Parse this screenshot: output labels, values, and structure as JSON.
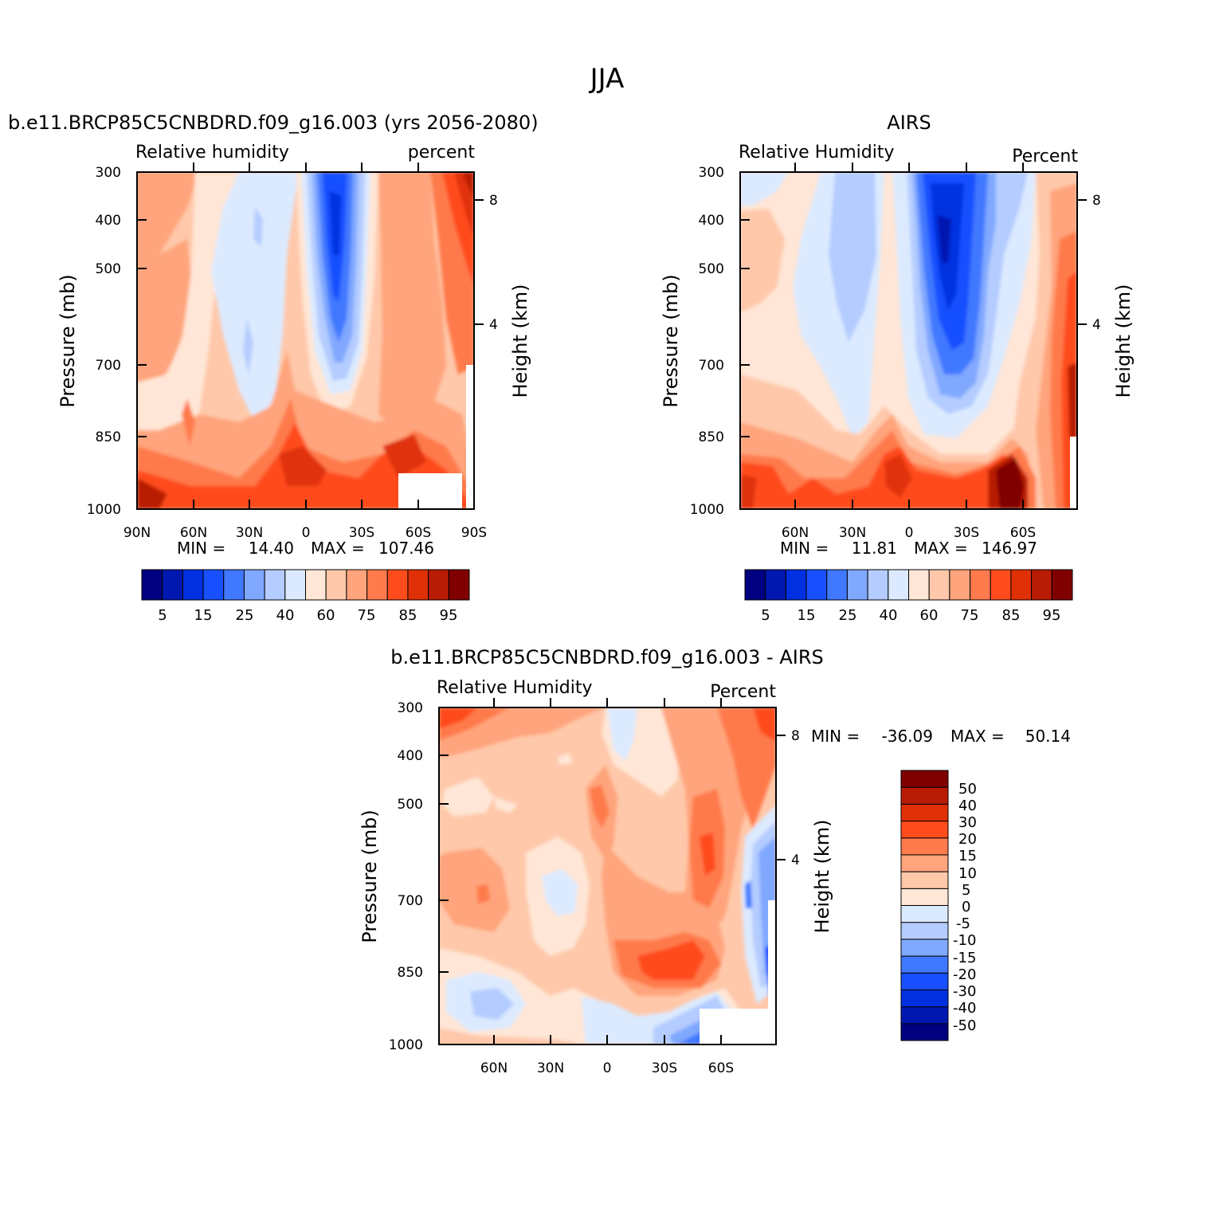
{
  "figure": {
    "title": "JJA"
  },
  "colors": {
    "rh_levels": [
      "#000080",
      "#0018b0",
      "#0030e0",
      "#1850ff",
      "#4078ff",
      "#80a8ff",
      "#b4ccff",
      "#dceaff",
      "#ffe6d6",
      "#ffc8aa",
      "#ffa47c",
      "#ff7a4c",
      "#ff4c1c",
      "#e03008",
      "#b81c04",
      "#800000"
    ],
    "diff_levels": [
      "#000080",
      "#0018b0",
      "#0030e0",
      "#1850ff",
      "#4078ff",
      "#80a8ff",
      "#b4ccff",
      "#dceaff",
      "#ffe6d6",
      "#ffc8aa",
      "#ffa47c",
      "#ff7a4c",
      "#ff4c1c",
      "#e03008",
      "#b81c04",
      "#800000"
    ]
  },
  "chart_data": [
    {
      "type": "heatmap",
      "title": "b.e11.BRCP85C5CNBDRD.f09_g16.003 (yrs 2056-2080)",
      "subtitle_left": "Relative humidity",
      "subtitle_right": "percent",
      "ylabel": "Pressure (mb)",
      "ylabel_right": "Height (km)",
      "y_ticks": [
        "300",
        "400",
        "500",
        "700",
        "850",
        "1000"
      ],
      "y_right_ticks": [
        "8",
        "4"
      ],
      "x_ticks": [
        "90N",
        "60N",
        "30N",
        "0",
        "30S",
        "60S",
        "90S"
      ],
      "ylim": [
        1000,
        300
      ],
      "stats": {
        "min_label": "MIN =",
        "min": "14.40",
        "max_label": "MAX =",
        "max": "107.46"
      },
      "colorbar_labels": [
        "5",
        "15",
        "25",
        "40",
        "60",
        "75",
        "85",
        "95"
      ]
    },
    {
      "type": "heatmap",
      "title": "AIRS",
      "subtitle_left": "Relative Humidity",
      "subtitle_right": "Percent",
      "ylabel": "Pressure (mb)",
      "ylabel_right": "Height (km)",
      "y_ticks": [
        "300",
        "400",
        "500",
        "700",
        "850",
        "1000"
      ],
      "y_right_ticks": [
        "8",
        "4"
      ],
      "x_ticks": [
        "60N",
        "30N",
        "0",
        "30S",
        "60S"
      ],
      "ylim": [
        1000,
        300
      ],
      "stats": {
        "min_label": "MIN =",
        "min": "11.81",
        "max_label": "MAX =",
        "max": "146.97"
      },
      "colorbar_labels": [
        "5",
        "15",
        "25",
        "40",
        "60",
        "75",
        "85",
        "95"
      ]
    },
    {
      "type": "heatmap",
      "title": "b.e11.BRCP85C5CNBDRD.f09_g16.003 - AIRS",
      "subtitle_left": "Relative Humidity",
      "subtitle_right": "Percent",
      "ylabel": "Pressure (mb)",
      "ylabel_right": "Height (km)",
      "y_ticks": [
        "300",
        "400",
        "500",
        "700",
        "850",
        "1000"
      ],
      "y_right_ticks": [
        "8",
        "4"
      ],
      "x_ticks": [
        "60N",
        "30N",
        "0",
        "30S",
        "60S"
      ],
      "ylim": [
        1000,
        300
      ],
      "stats": {
        "min_label": "MIN =",
        "min": "-36.09",
        "max_label": "MAX =",
        "max": "50.14"
      },
      "colorbar_labels": [
        "50",
        "40",
        "30",
        "20",
        "15",
        "10",
        "5",
        "0",
        "-5",
        "-10",
        "-15",
        "-20",
        "-30",
        "-40",
        "-50"
      ]
    }
  ]
}
